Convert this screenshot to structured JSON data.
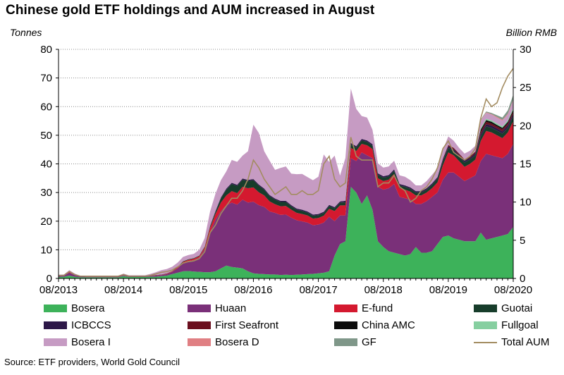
{
  "header": {
    "title": "Chinese gold ETF holdings and AUM increased in August",
    "left_unit": "Tonnes",
    "right_unit": "Billion RMB"
  },
  "source": "Source: ETF providers, World Gold Council",
  "colors": {
    "Bosera": "#3db25a",
    "Huaan": "#7a3079",
    "E-fund": "#d4192f",
    "Guotai": "#173d2b",
    "ICBCCS": "#2d1848",
    "First Seafront": "#6b0f1e",
    "China AMC": "#0c0c0c",
    "Fullgoal": "#86cfa0",
    "Bosera I": "#c69bc3",
    "Bosera D": "#e07f83",
    "GF": "#7f9789",
    "Total AUM": "#a38c61"
  },
  "legend": [
    {
      "name": "Bosera"
    },
    {
      "name": "Huaan"
    },
    {
      "name": "E-fund"
    },
    {
      "name": "Guotai"
    },
    {
      "name": "ICBCCS"
    },
    {
      "name": "First Seafront"
    },
    {
      "name": "China AMC"
    },
    {
      "name": "Fullgoal"
    },
    {
      "name": "Bosera I"
    },
    {
      "name": "Bosera D"
    },
    {
      "name": "GF"
    },
    {
      "name": "Total AUM"
    }
  ],
  "chart_data": {
    "type": "area",
    "title": "Chinese gold ETF holdings and AUM increased in August",
    "ylabel": "Tonnes",
    "y2label": "Billion RMB",
    "ylim": [
      0,
      80
    ],
    "y2lim": [
      0,
      30
    ],
    "yticks": [
      0,
      10,
      20,
      30,
      40,
      50,
      60,
      70,
      80
    ],
    "y2ticks": [
      0,
      5,
      10,
      15,
      20,
      25,
      30
    ],
    "xtick_labels": [
      "08/2013",
      "08/2014",
      "08/2015",
      "08/2016",
      "08/2017",
      "08/2018",
      "08/2019",
      "08/2020"
    ],
    "grid": true,
    "legend_position": "bottom",
    "x": [
      "08/2013",
      "09/2013",
      "10/2013",
      "11/2013",
      "12/2013",
      "01/2014",
      "02/2014",
      "03/2014",
      "04/2014",
      "05/2014",
      "06/2014",
      "07/2014",
      "08/2014",
      "09/2014",
      "10/2014",
      "11/2014",
      "12/2014",
      "01/2015",
      "02/2015",
      "03/2015",
      "04/2015",
      "05/2015",
      "06/2015",
      "07/2015",
      "08/2015",
      "09/2015",
      "10/2015",
      "11/2015",
      "12/2015",
      "01/2016",
      "02/2016",
      "03/2016",
      "04/2016",
      "05/2016",
      "06/2016",
      "07/2016",
      "08/2016",
      "09/2016",
      "10/2016",
      "11/2016",
      "12/2016",
      "01/2017",
      "02/2017",
      "03/2017",
      "04/2017",
      "05/2017",
      "06/2017",
      "07/2017",
      "08/2017",
      "09/2017",
      "10/2017",
      "11/2017",
      "12/2017",
      "01/2018",
      "02/2018",
      "03/2018",
      "04/2018",
      "05/2018",
      "06/2018",
      "07/2018",
      "08/2018",
      "09/2018",
      "10/2018",
      "11/2018",
      "12/2018",
      "01/2019",
      "02/2019",
      "03/2019",
      "04/2019",
      "05/2019",
      "06/2019",
      "07/2019",
      "08/2019",
      "09/2019",
      "10/2019",
      "11/2019",
      "12/2019",
      "01/2020",
      "02/2020",
      "03/2020",
      "04/2020",
      "05/2020",
      "06/2020",
      "07/2020",
      "08/2020"
    ],
    "series": [
      {
        "name": "Bosera",
        "axis": "left",
        "values": [
          0.5,
          0.6,
          1.0,
          0.6,
          0.4,
          0.4,
          0.4,
          0.4,
          0.4,
          0.4,
          0.4,
          0.4,
          0.8,
          0.5,
          0.5,
          0.5,
          0.5,
          0.6,
          0.6,
          0.8,
          1.0,
          1.5,
          2.0,
          2.5,
          2.6,
          2.4,
          2.3,
          2.2,
          2.2,
          2.5,
          3.5,
          4.5,
          4.0,
          3.8,
          3.5,
          2.5,
          1.8,
          1.6,
          1.5,
          1.4,
          1.4,
          1.2,
          1.3,
          1.2,
          1.3,
          1.4,
          1.5,
          1.6,
          1.8,
          2.0,
          2.5,
          8.0,
          12.0,
          13.0,
          32.0,
          30.0,
          26.0,
          29.0,
          24.0,
          13.0,
          11.0,
          9.5,
          9.0,
          8.5,
          8.0,
          8.5,
          11.0,
          9.0,
          9.0,
          9.5,
          12.0,
          14.5,
          15.0,
          14.0,
          13.5,
          13.0,
          13.0,
          13.0,
          16.0,
          13.5,
          14.0,
          14.5,
          15.0,
          15.5,
          18.0
        ]
      },
      {
        "name": "Huaan",
        "axis": "left",
        "values": [
          0.5,
          0.5,
          1.0,
          0.6,
          0.3,
          0.2,
          0.2,
          0.2,
          0.2,
          0.2,
          0.2,
          0.2,
          0.3,
          0.2,
          0.2,
          0.2,
          0.2,
          0.3,
          0.4,
          0.4,
          0.5,
          0.8,
          1.5,
          3.0,
          3.5,
          4.0,
          5.0,
          8.0,
          14.0,
          18.0,
          20.0,
          21.0,
          22.5,
          22.0,
          24.0,
          24.0,
          25.0,
          24.0,
          23.5,
          22.0,
          21.5,
          21.0,
          21.0,
          20.0,
          19.0,
          18.5,
          18.0,
          17.0,
          17.0,
          17.5,
          19.0,
          12.0,
          10.0,
          9.0,
          10.0,
          11.0,
          18.0,
          14.0,
          18.0,
          19.0,
          20.0,
          22.0,
          24.0,
          20.0,
          20.0,
          19.0,
          15.0,
          17.0,
          18.0,
          19.0,
          18.0,
          20.0,
          22.0,
          23.0,
          22.0,
          21.0,
          22.0,
          23.0,
          25.0,
          30.0,
          29.0,
          28.0,
          27.0,
          28.0,
          29.0
        ]
      },
      {
        "name": "E-fund",
        "axis": "left",
        "values": [
          0.1,
          0.1,
          0.5,
          0.2,
          0.1,
          0.1,
          0.1,
          0.1,
          0.1,
          0.1,
          0.1,
          0.1,
          0.1,
          0.1,
          0.1,
          0.1,
          0.1,
          0.1,
          0.1,
          0.1,
          0.2,
          0.2,
          0.3,
          0.3,
          0.4,
          0.5,
          0.5,
          0.6,
          1.5,
          2.0,
          3.0,
          3.5,
          4.0,
          4.0,
          4.5,
          5.0,
          5.0,
          4.5,
          4.0,
          3.5,
          3.0,
          3.0,
          3.0,
          2.8,
          2.6,
          2.6,
          2.5,
          2.3,
          2.3,
          2.4,
          2.8,
          3.5,
          3.5,
          3.5,
          3.6,
          3.5,
          3.0,
          3.5,
          3.2,
          3.0,
          3.0,
          3.0,
          3.5,
          3.0,
          3.0,
          2.8,
          3.0,
          3.0,
          3.0,
          3.0,
          3.5,
          5.0,
          7.0,
          6.0,
          5.5,
          5.0,
          5.0,
          5.5,
          7.0,
          8.0,
          8.0,
          7.5,
          7.0,
          7.5,
          8.0
        ]
      },
      {
        "name": "Guotai",
        "axis": "left",
        "values": [
          0,
          0,
          0,
          0,
          0,
          0,
          0,
          0,
          0,
          0,
          0,
          0,
          0.3,
          0.1,
          0.1,
          0.1,
          0.1,
          0.1,
          0.1,
          0.1,
          0.1,
          0.1,
          0.2,
          0.2,
          0.2,
          0.2,
          0.2,
          0.3,
          0.5,
          0.8,
          1.5,
          2.0,
          2.5,
          2.5,
          2.5,
          2.5,
          2.5,
          2.3,
          2.0,
          1.8,
          1.6,
          1.5,
          1.4,
          1.2,
          1.1,
          1.1,
          1.0,
          1.0,
          1.0,
          1.0,
          1.0,
          1.0,
          1.0,
          1.1,
          1.2,
          1.2,
          1.2,
          1.2,
          1.2,
          1.2,
          1.2,
          1.1,
          1.1,
          1.0,
          1.0,
          1.0,
          1.0,
          1.0,
          1.0,
          1.2,
          1.4,
          1.5,
          1.6,
          1.5,
          1.5,
          1.5,
          1.5,
          1.5,
          1.6,
          1.6,
          1.6,
          1.6,
          1.6,
          1.6,
          1.7
        ]
      },
      {
        "name": "ICBCCS",
        "axis": "left",
        "values": [
          0,
          0,
          0,
          0,
          0,
          0,
          0,
          0,
          0,
          0,
          0,
          0,
          0,
          0,
          0,
          0,
          0,
          0,
          0,
          0,
          0,
          0,
          0,
          0,
          0,
          0,
          0,
          0,
          0.2,
          0.3,
          0.3,
          0.4,
          0.4,
          0.4,
          0.4,
          0.4,
          0.4,
          0.4,
          0.4,
          0.4,
          0.4,
          0.4,
          0.4,
          0.4,
          0.4,
          0.4,
          0.4,
          0.4,
          0.4,
          0.4,
          0.4,
          0.4,
          0.4,
          0.5,
          0.5,
          0.5,
          0.5,
          0.5,
          0.5,
          0.5,
          0.5,
          0.5,
          0.5,
          0.5,
          0.5,
          0.5,
          0.5,
          0.5,
          0.5,
          0.5,
          0.5,
          0.6,
          0.6,
          0.6,
          0.6,
          0.6,
          0.6,
          0.7,
          0.8,
          0.8,
          0.8,
          0.8,
          0.8,
          0.9,
          0.9
        ]
      },
      {
        "name": "First Seafront",
        "axis": "left",
        "values": [
          0,
          0,
          0,
          0,
          0,
          0,
          0,
          0,
          0,
          0,
          0,
          0,
          0,
          0,
          0,
          0,
          0,
          0,
          0,
          0,
          0,
          0,
          0,
          0,
          0,
          0,
          0,
          0,
          0,
          0,
          0,
          0,
          0,
          0,
          0,
          0,
          0,
          0,
          0,
          0,
          0,
          0,
          0,
          0,
          0,
          0,
          0,
          0,
          0,
          0,
          0,
          0,
          0,
          0,
          0,
          0,
          0,
          0,
          0,
          0,
          0,
          0,
          0,
          0,
          0,
          0,
          0,
          0,
          0,
          0,
          0,
          0.3,
          0.4,
          0.5,
          0.5,
          0.5,
          0.5,
          0.6,
          0.8,
          0.8,
          0.7,
          0.7,
          0.7,
          0.7,
          0.8
        ]
      },
      {
        "name": "China AMC",
        "axis": "left",
        "values": [
          0,
          0,
          0,
          0,
          0,
          0,
          0,
          0,
          0,
          0,
          0,
          0,
          0,
          0,
          0,
          0,
          0,
          0,
          0,
          0,
          0,
          0,
          0,
          0,
          0,
          0,
          0,
          0,
          0,
          0,
          0,
          0,
          0,
          0,
          0,
          0,
          0,
          0,
          0,
          0,
          0,
          0,
          0,
          0,
          0,
          0,
          0,
          0,
          0,
          0,
          0,
          0,
          0,
          0,
          0,
          0,
          0,
          0,
          0,
          0,
          0,
          0,
          0,
          0,
          0,
          0,
          0,
          0,
          0,
          0,
          0,
          0,
          0,
          0,
          0,
          0,
          0,
          0,
          0.8,
          0.6,
          0.6,
          0.5,
          0.5,
          0.5,
          0.6
        ]
      },
      {
        "name": "Fullgoal",
        "axis": "left",
        "values": [
          0,
          0,
          0,
          0,
          0,
          0,
          0,
          0,
          0,
          0,
          0,
          0,
          0,
          0,
          0,
          0,
          0,
          0,
          0,
          0,
          0,
          0,
          0,
          0,
          0,
          0,
          0,
          0,
          0,
          0,
          0,
          0,
          0,
          0,
          0,
          0,
          0,
          0,
          0,
          0,
          0,
          0,
          0,
          0,
          0,
          0,
          0,
          0,
          0,
          0,
          0,
          0,
          0,
          0,
          0,
          0,
          0,
          0,
          0,
          0,
          0,
          0,
          0,
          0,
          0,
          0,
          0,
          0,
          0,
          0,
          0,
          0,
          0,
          0,
          0,
          0,
          0,
          0,
          0.5,
          0.5,
          0.5,
          0.5,
          0.5,
          0.5,
          0.6
        ]
      },
      {
        "name": "Bosera I",
        "axis": "left",
        "values": [
          0.2,
          0.2,
          0.4,
          0.3,
          0.2,
          0.2,
          0.2,
          0.2,
          0.2,
          0.2,
          0.2,
          0.2,
          0.2,
          0.2,
          0.2,
          0.2,
          0.2,
          0.5,
          1.0,
          1.5,
          1.5,
          1.5,
          1.5,
          1.5,
          1.5,
          1.5,
          2.0,
          3.0,
          5.0,
          6.0,
          6.0,
          6.0,
          8.0,
          8.0,
          8.0,
          10.0,
          19.0,
          18.0,
          13.0,
          12.0,
          10.0,
          11.5,
          12.0,
          11.0,
          12.0,
          12.5,
          12.0,
          12.0,
          13.0,
          20.0,
          15.0,
          18.0,
          9.0,
          15.0,
          19.0,
          13.0,
          8.0,
          8.0,
          5.0,
          3.5,
          3.0,
          3.0,
          3.0,
          3.0,
          3.0,
          2.5,
          2.0,
          2.0,
          2.5,
          3.0,
          3.0,
          3.0,
          3.0,
          2.5,
          2.0,
          2.0,
          2.0,
          2.0,
          2.5,
          2.0,
          2.0,
          2.0,
          2.0,
          2.0,
          2.5
        ]
      },
      {
        "name": "Bosera D",
        "axis": "left",
        "values": [
          0,
          0,
          0,
          0,
          0,
          0,
          0,
          0,
          0,
          0,
          0,
          0,
          0,
          0,
          0,
          0,
          0,
          0,
          0,
          0,
          0,
          0,
          0,
          0,
          0,
          0,
          0,
          0,
          0,
          0,
          0,
          0,
          0,
          0,
          0,
          0,
          0,
          0,
          0,
          0,
          0,
          0,
          0,
          0,
          0,
          0,
          0,
          0,
          0,
          0,
          0,
          0,
          0,
          0,
          0,
          0,
          0,
          0,
          0,
          0,
          0,
          0,
          0,
          0,
          0,
          0,
          0,
          0,
          0,
          0,
          0,
          0,
          0,
          0,
          0,
          0,
          0,
          0,
          0.2,
          0.2,
          0.2,
          0.3,
          0.3,
          0.3,
          0.3
        ]
      },
      {
        "name": "GF",
        "axis": "left",
        "values": [
          0,
          0,
          0,
          0,
          0,
          0,
          0,
          0,
          0,
          0,
          0,
          0,
          0,
          0,
          0,
          0,
          0,
          0,
          0,
          0,
          0,
          0,
          0,
          0,
          0,
          0,
          0,
          0,
          0,
          0,
          0,
          0,
          0,
          0,
          0,
          0,
          0,
          0,
          0,
          0,
          0,
          0,
          0,
          0,
          0,
          0,
          0,
          0,
          0,
          0,
          0,
          0,
          0,
          0,
          0,
          0,
          0,
          0,
          0,
          0,
          0,
          0,
          0,
          0,
          0,
          0,
          0,
          0,
          0,
          0,
          0,
          0,
          0,
          0,
          0,
          0,
          0,
          0,
          0.3,
          0.3,
          0.4,
          0.6,
          0.8,
          1.2,
          1.8
        ]
      },
      {
        "name": "Total AUM",
        "axis": "right",
        "type": "line",
        "values": [
          0.4,
          0.4,
          0.9,
          0.5,
          0.3,
          0.3,
          0.3,
          0.3,
          0.3,
          0.3,
          0.3,
          0.3,
          0.5,
          0.3,
          0.3,
          0.3,
          0.3,
          0.4,
          0.6,
          0.8,
          0.9,
          1.1,
          1.5,
          2.0,
          2.2,
          2.3,
          2.6,
          3.5,
          6.0,
          7.0,
          8.5,
          9.5,
          10.5,
          10.5,
          11.5,
          13.0,
          15.5,
          14.5,
          13.0,
          12.0,
          11.0,
          11.5,
          12.0,
          11.0,
          11.0,
          11.5,
          11.0,
          11.0,
          11.5,
          15.0,
          16.0,
          13.0,
          12.0,
          12.5,
          18.5,
          16.0,
          15.5,
          15.5,
          15.5,
          12.0,
          12.5,
          12.5,
          13.5,
          12.0,
          11.5,
          10.0,
          10.5,
          11.5,
          12.0,
          13.0,
          14.5,
          17.0,
          18.0,
          16.5,
          16.0,
          15.5,
          16.0,
          17.0,
          21.0,
          23.5,
          22.5,
          23.0,
          25.0,
          26.5,
          27.5
        ]
      }
    ]
  }
}
